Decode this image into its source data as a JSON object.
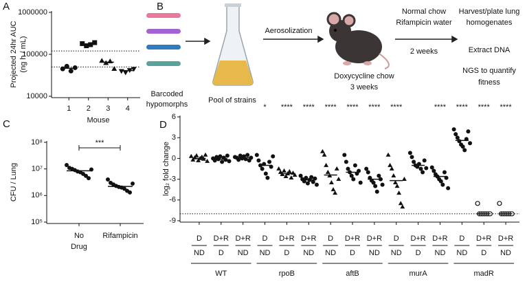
{
  "chart_data": [
    {
      "type": "strip",
      "label": "A",
      "y_label": [
        "Projected 24hr AUC",
        "(ng h / mL)"
      ],
      "x_label": "Mouse",
      "log_scale": true,
      "ylim": [
        10000,
        1000000
      ],
      "yticks": [
        10000,
        100000,
        1000000
      ],
      "categories": [
        "1",
        "2",
        "3",
        "4"
      ],
      "markers": [
        "circle",
        "square",
        "triangle",
        "triangle-down"
      ],
      "color": "#111111",
      "values": [
        [
          45000,
          52000,
          40000,
          48000
        ],
        [
          180000,
          160000,
          170000,
          190000
        ],
        [
          70000,
          62000,
          68000,
          45000
        ],
        [
          40000,
          37000,
          42000,
          45000
        ]
      ],
      "medians": [
        46500,
        175000,
        65000,
        41000
      ],
      "reference_lines": [
        120000,
        50000
      ]
    },
    {
      "type": "strip",
      "label": "C",
      "y_label": [
        "CFU / Lung"
      ],
      "log_scale": true,
      "ylim": [
        100000,
        100000000
      ],
      "yticks": [
        {
          "value": 100000,
          "label": "10⁵"
        },
        {
          "value": 1000000,
          "label": "10⁶"
        },
        {
          "value": 10000000,
          "label": "10⁷"
        },
        {
          "value": 100000000,
          "label": "10⁸"
        }
      ],
      "categories": [
        [
          "No",
          "Drug"
        ],
        [
          "Rifampicin"
        ]
      ],
      "markers": [
        "circle",
        "circle"
      ],
      "color": "#111111",
      "values": [
        [
          14000000,
          11000000,
          10000000,
          9000000,
          8000000,
          7500000,
          6500000,
          5500000,
          4500000,
          9500000
        ],
        [
          4000000,
          3000000,
          2600000,
          2300000,
          2100000,
          2000000,
          1800000,
          1500000,
          1300000,
          2800000
        ]
      ],
      "medians": [
        8500000,
        2200000
      ],
      "significance": "***"
    },
    {
      "type": "strip",
      "label": "D",
      "y_label": [
        "log₂ fold change"
      ],
      "log_scale": false,
      "ylim": [
        -9,
        6
      ],
      "yticks": [
        -9,
        -6,
        -3,
        0,
        3,
        6
      ],
      "categories": [
        [
          "D",
          "ND"
        ],
        [
          "D+R",
          "D"
        ],
        [
          "D+R",
          "ND"
        ],
        [
          "D",
          "ND"
        ],
        [
          "D+R",
          "D"
        ],
        [
          "D+R",
          "ND"
        ],
        [
          "D",
          "ND"
        ],
        [
          "D+R",
          "D"
        ],
        [
          "D+R",
          "ND"
        ],
        [
          "D",
          "ND"
        ],
        [
          "D+R",
          "D"
        ],
        [
          "D+R",
          "ND"
        ],
        [
          "D",
          "ND"
        ],
        [
          "D+R",
          "D"
        ],
        [
          "D+R",
          "ND"
        ]
      ],
      "groups": [
        "WT",
        "rpoB",
        "aftB",
        "murA",
        "madR"
      ],
      "markers": [
        "triangle",
        "circle",
        "circle",
        "circle",
        "triangle",
        "circle",
        "triangle",
        "circle",
        "circle",
        "triangle",
        "circle",
        "circle",
        "circle",
        "circle-open",
        "circle-open"
      ],
      "color": "#111111",
      "values": [
        [
          0.3,
          -0.2,
          0.1,
          0.4,
          -0.3,
          0,
          0.2,
          -0.1,
          0.5,
          -0.4
        ],
        [
          0,
          -0.3,
          0.2,
          -0.1,
          0.3,
          -0.5,
          0.1,
          -0.2,
          0.4,
          -0.4
        ],
        [
          0.2,
          0.1,
          -0.2,
          0.4,
          0,
          0.3,
          -0.1,
          0.5,
          -0.3,
          0.1
        ],
        [
          0.5,
          -0.3,
          -1,
          -1.5,
          -0.8,
          -2.2,
          -2.8,
          -0.5,
          -1.2,
          0.3
        ],
        [
          -1.5,
          -2,
          -2.3,
          -1.8,
          -2.6,
          -2.2,
          -1.9,
          -2.8,
          -2.1,
          -2.4
        ],
        [
          -2.5,
          -3,
          -3.3,
          -2.8,
          -3.6,
          -3.1,
          -2.7,
          -3.4,
          -2.9,
          -3.8
        ],
        [
          1,
          0.5,
          -1,
          -2,
          -2.5,
          -3.5,
          -4.5,
          -5,
          -1.5,
          -3
        ],
        [
          0.5,
          -0.5,
          -1.5,
          -2,
          -2.5,
          -3,
          -1,
          -2.2,
          -1.8,
          -3.5
        ],
        [
          -1.5,
          -2,
          -2.8,
          -3.2,
          -3.5,
          -4,
          -4.8,
          -2.5,
          -3,
          -3.8
        ],
        [
          0.5,
          -1,
          -1.5,
          -2.5,
          -3.5,
          -4,
          -5,
          -6.5,
          -7,
          -3
        ],
        [
          0.8,
          0.2,
          -0.5,
          -1,
          -1.2,
          -0.8,
          -1.5,
          -2,
          -0.3,
          -1.4
        ],
        [
          -1.3,
          -1.8,
          -2.3,
          -2.6,
          -3,
          -3.3,
          -3.8,
          -2,
          -2.8,
          -4.3
        ],
        [
          4.2,
          3.5,
          3,
          2.5,
          2,
          1.7,
          1.2,
          2.8,
          3.9,
          2.2
        ],
        [
          -6.5,
          -8,
          -8,
          -8,
          -8,
          -8,
          -8,
          -8
        ],
        [
          -6.5,
          -8,
          -8,
          -8,
          -8,
          -8,
          -8,
          -8
        ]
      ],
      "medians": [
        0,
        -0.1,
        0.1,
        -1,
        -2.2,
        -3.1,
        -2.4,
        -2,
        -3,
        -3.2,
        -1,
        -2.6,
        2.6,
        -8,
        -8
      ],
      "significance": [
        null,
        null,
        null,
        "*",
        "****",
        "****",
        "****",
        "****",
        "****",
        "****",
        null,
        "****",
        "****",
        "****",
        "****"
      ],
      "reference_lines": [
        -8
      ]
    }
  ],
  "diagram": {
    "label": "B",
    "strains": [
      "Barcoded",
      "hypomorphs"
    ],
    "pool": "Pool of strains",
    "aerosol": "Aerosolization",
    "infection": [
      "Doxycycline chow",
      "3 weeks"
    ],
    "treatment": [
      "Normal chow",
      "Rifampicin water"
    ],
    "treatment_time": "2 weeks",
    "outputs": [
      [
        "Harvest/plate lung",
        "homogenates"
      ],
      [
        "Extract DNA"
      ],
      [
        "NGS to quantify",
        "fitness"
      ]
    ]
  }
}
